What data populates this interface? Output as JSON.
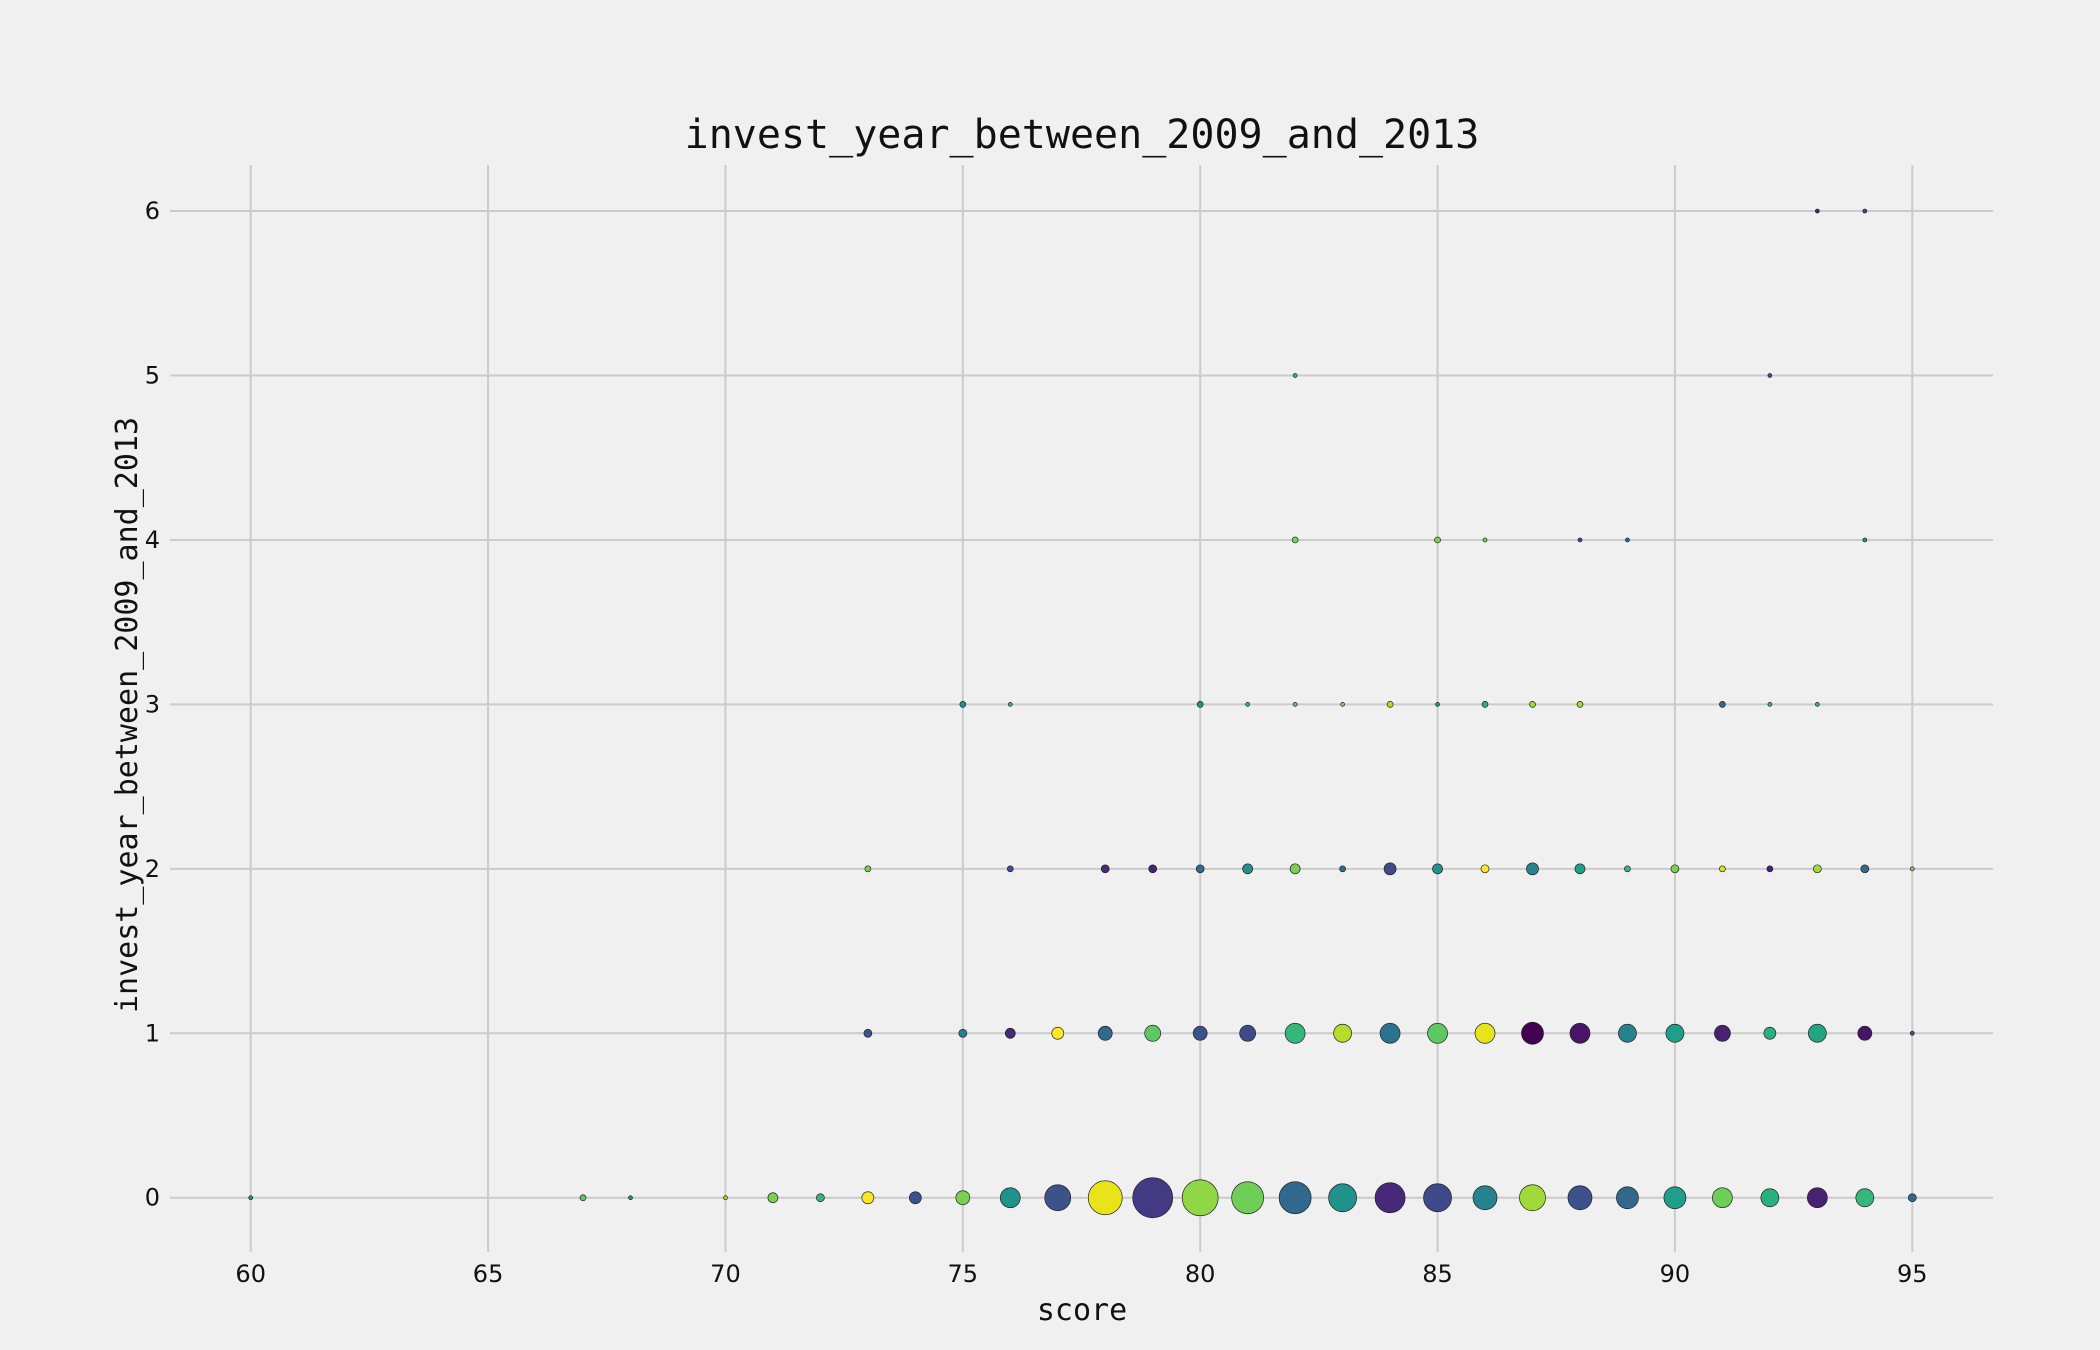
{
  "chart_data": {
    "type": "scatter",
    "title": "invest_year_between_2009_and_2013",
    "xlabel": "score",
    "ylabel": "invest_year_between_2009_and_2013",
    "xlim": [
      58.3,
      96.7
    ],
    "ylim": [
      -0.33,
      6.28
    ],
    "xticks": [
      60,
      65,
      70,
      75,
      80,
      85,
      90,
      95
    ],
    "yticks": [
      0,
      1,
      2,
      3,
      4,
      5,
      6
    ],
    "grid": true,
    "points": [
      {
        "x": 60,
        "y": 0,
        "size": 2,
        "color": "#21918c"
      },
      {
        "x": 67,
        "y": 0,
        "size": 3,
        "color": "#5ec962"
      },
      {
        "x": 68,
        "y": 0,
        "size": 2,
        "color": "#21918c"
      },
      {
        "x": 70,
        "y": 0,
        "size": 2,
        "color": "#a0da39"
      },
      {
        "x": 71,
        "y": 0,
        "size": 5,
        "color": "#7ad151"
      },
      {
        "x": 72,
        "y": 0,
        "size": 4,
        "color": "#35b779"
      },
      {
        "x": 73,
        "y": 0,
        "size": 6,
        "color": "#fde725"
      },
      {
        "x": 74,
        "y": 0,
        "size": 6,
        "color": "#3b528b"
      },
      {
        "x": 75,
        "y": 0,
        "size": 7,
        "color": "#7ad151"
      },
      {
        "x": 76,
        "y": 0,
        "size": 10,
        "color": "#21918c"
      },
      {
        "x": 77,
        "y": 0,
        "size": 13,
        "color": "#3b528b"
      },
      {
        "x": 78,
        "y": 0,
        "size": 17,
        "color": "#e8e419"
      },
      {
        "x": 79,
        "y": 0,
        "size": 20,
        "color": "#443983"
      },
      {
        "x": 80,
        "y": 0,
        "size": 18,
        "color": "#8fd744"
      },
      {
        "x": 81,
        "y": 0,
        "size": 16,
        "color": "#6ece58"
      },
      {
        "x": 82,
        "y": 0,
        "size": 16,
        "color": "#31688e"
      },
      {
        "x": 83,
        "y": 0,
        "size": 14,
        "color": "#21918c"
      },
      {
        "x": 84,
        "y": 0,
        "size": 15,
        "color": "#482878"
      },
      {
        "x": 85,
        "y": 0,
        "size": 14,
        "color": "#3e4a89"
      },
      {
        "x": 86,
        "y": 0,
        "size": 12,
        "color": "#26828e"
      },
      {
        "x": 87,
        "y": 0,
        "size": 13,
        "color": "#a0da39"
      },
      {
        "x": 88,
        "y": 0,
        "size": 12,
        "color": "#3b528b"
      },
      {
        "x": 89,
        "y": 0,
        "size": 11,
        "color": "#31688e"
      },
      {
        "x": 90,
        "y": 0,
        "size": 11,
        "color": "#1f9e89"
      },
      {
        "x": 91,
        "y": 0,
        "size": 10,
        "color": "#6ece58"
      },
      {
        "x": 92,
        "y": 0,
        "size": 9,
        "color": "#2ab07f"
      },
      {
        "x": 93,
        "y": 0,
        "size": 10,
        "color": "#482173"
      },
      {
        "x": 94,
        "y": 0,
        "size": 9,
        "color": "#35b779"
      },
      {
        "x": 95,
        "y": 0,
        "size": 4,
        "color": "#31688e"
      },
      {
        "x": 73,
        "y": 1,
        "size": 4,
        "color": "#3b528b"
      },
      {
        "x": 75,
        "y": 1,
        "size": 4,
        "color": "#26828e"
      },
      {
        "x": 76,
        "y": 1,
        "size": 5,
        "color": "#482878"
      },
      {
        "x": 77,
        "y": 1,
        "size": 6,
        "color": "#fde725"
      },
      {
        "x": 78,
        "y": 1,
        "size": 7,
        "color": "#31688e"
      },
      {
        "x": 79,
        "y": 1,
        "size": 8,
        "color": "#5ec962"
      },
      {
        "x": 80,
        "y": 1,
        "size": 7,
        "color": "#3b528b"
      },
      {
        "x": 81,
        "y": 1,
        "size": 8,
        "color": "#3e4a89"
      },
      {
        "x": 82,
        "y": 1,
        "size": 10,
        "color": "#35b779"
      },
      {
        "x": 83,
        "y": 1,
        "size": 9,
        "color": "#b5de2b"
      },
      {
        "x": 84,
        "y": 1,
        "size": 10,
        "color": "#2c728e"
      },
      {
        "x": 85,
        "y": 1,
        "size": 10,
        "color": "#5ec962"
      },
      {
        "x": 86,
        "y": 1,
        "size": 10,
        "color": "#e8e419"
      },
      {
        "x": 87,
        "y": 1,
        "size": 11,
        "color": "#440154"
      },
      {
        "x": 88,
        "y": 1,
        "size": 10,
        "color": "#481467"
      },
      {
        "x": 89,
        "y": 1,
        "size": 9,
        "color": "#26828e"
      },
      {
        "x": 90,
        "y": 1,
        "size": 9,
        "color": "#1f9e89"
      },
      {
        "x": 91,
        "y": 1,
        "size": 8,
        "color": "#482173"
      },
      {
        "x": 92,
        "y": 1,
        "size": 6,
        "color": "#2ab07f"
      },
      {
        "x": 93,
        "y": 1,
        "size": 9,
        "color": "#21a585"
      },
      {
        "x": 94,
        "y": 1,
        "size": 7,
        "color": "#481467"
      },
      {
        "x": 95,
        "y": 1,
        "size": 2,
        "color": "#3b528b"
      },
      {
        "x": 73,
        "y": 2,
        "size": 3,
        "color": "#7ad151"
      },
      {
        "x": 76,
        "y": 2,
        "size": 3,
        "color": "#3b528b"
      },
      {
        "x": 78,
        "y": 2,
        "size": 4,
        "color": "#482878"
      },
      {
        "x": 79,
        "y": 2,
        "size": 4,
        "color": "#482173"
      },
      {
        "x": 80,
        "y": 2,
        "size": 4,
        "color": "#31688e"
      },
      {
        "x": 81,
        "y": 2,
        "size": 5,
        "color": "#21918c"
      },
      {
        "x": 82,
        "y": 2,
        "size": 5,
        "color": "#7ad151"
      },
      {
        "x": 83,
        "y": 2,
        "size": 3,
        "color": "#31688e"
      },
      {
        "x": 84,
        "y": 2,
        "size": 6,
        "color": "#3e4a89"
      },
      {
        "x": 85,
        "y": 2,
        "size": 5,
        "color": "#21918c"
      },
      {
        "x": 86,
        "y": 2,
        "size": 4,
        "color": "#fde725"
      },
      {
        "x": 87,
        "y": 2,
        "size": 6,
        "color": "#26828e"
      },
      {
        "x": 88,
        "y": 2,
        "size": 5,
        "color": "#1f9e89"
      },
      {
        "x": 89,
        "y": 2,
        "size": 3,
        "color": "#35b779"
      },
      {
        "x": 90,
        "y": 2,
        "size": 4,
        "color": "#7ad151"
      },
      {
        "x": 91,
        "y": 2,
        "size": 3,
        "color": "#d8e219"
      },
      {
        "x": 92,
        "y": 2,
        "size": 3,
        "color": "#482173"
      },
      {
        "x": 93,
        "y": 2,
        "size": 4,
        "color": "#a0da39"
      },
      {
        "x": 94,
        "y": 2,
        "size": 4,
        "color": "#31688e"
      },
      {
        "x": 95,
        "y": 2,
        "size": 2,
        "color": "#7ad151"
      },
      {
        "x": 75,
        "y": 3,
        "size": 3,
        "color": "#21918c"
      },
      {
        "x": 76,
        "y": 3,
        "size": 2,
        "color": "#35b779"
      },
      {
        "x": 80,
        "y": 3,
        "size": 3,
        "color": "#21918c"
      },
      {
        "x": 81,
        "y": 3,
        "size": 2,
        "color": "#35b779"
      },
      {
        "x": 82,
        "y": 3,
        "size": 2,
        "color": "#5ec962"
      },
      {
        "x": 83,
        "y": 3,
        "size": 2,
        "color": "#7ad151"
      },
      {
        "x": 84,
        "y": 3,
        "size": 3,
        "color": "#b5de2b"
      },
      {
        "x": 85,
        "y": 3,
        "size": 2,
        "color": "#21918c"
      },
      {
        "x": 86,
        "y": 3,
        "size": 3,
        "color": "#2ab07f"
      },
      {
        "x": 87,
        "y": 3,
        "size": 3,
        "color": "#a0da39"
      },
      {
        "x": 88,
        "y": 3,
        "size": 3,
        "color": "#a0da39"
      },
      {
        "x": 91,
        "y": 3,
        "size": 3,
        "color": "#31688e"
      },
      {
        "x": 92,
        "y": 3,
        "size": 2,
        "color": "#35b779"
      },
      {
        "x": 93,
        "y": 3,
        "size": 2,
        "color": "#35b779"
      },
      {
        "x": 82,
        "y": 4,
        "size": 3,
        "color": "#7ad151"
      },
      {
        "x": 85,
        "y": 4,
        "size": 3,
        "color": "#7ad151"
      },
      {
        "x": 86,
        "y": 4,
        "size": 2,
        "color": "#7ad151"
      },
      {
        "x": 88,
        "y": 4,
        "size": 2,
        "color": "#3b528b"
      },
      {
        "x": 89,
        "y": 4,
        "size": 2,
        "color": "#31688e"
      },
      {
        "x": 94,
        "y": 4,
        "size": 2,
        "color": "#21918c"
      },
      {
        "x": 82,
        "y": 5,
        "size": 2,
        "color": "#35b779"
      },
      {
        "x": 92,
        "y": 5,
        "size": 2,
        "color": "#3b528b"
      },
      {
        "x": 93,
        "y": 6,
        "size": 2,
        "color": "#482878"
      },
      {
        "x": 94,
        "y": 6,
        "size": 2,
        "color": "#3e4a89"
      }
    ]
  }
}
